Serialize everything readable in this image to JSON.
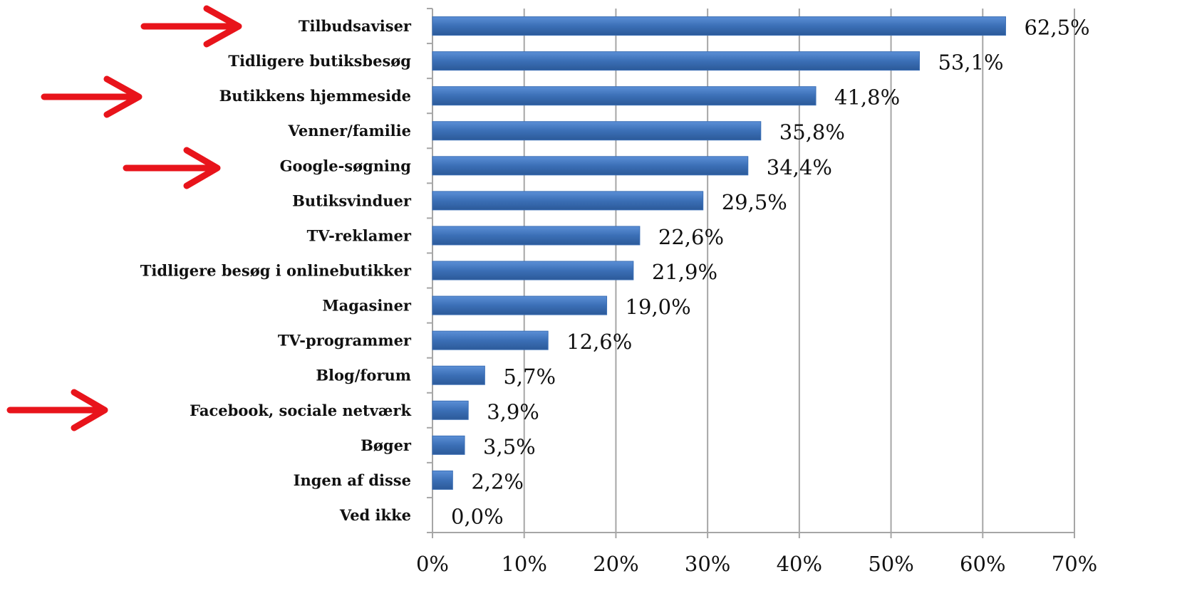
{
  "chart_data": {
    "type": "bar",
    "orientation": "horizontal",
    "categories": [
      "Tilbudsaviser",
      "Tidligere butiksbesøg",
      "Butikkens hjemmeside",
      "Venner/familie",
      "Google-søgning",
      "Butiksvinduer",
      "TV-reklamer",
      "Tidligere besøg i onlinebutikker",
      "Magasiner",
      "TV-programmer",
      "Blog/forum",
      "Facebook, sociale netværk",
      "Bøger",
      "Ingen af disse",
      "Ved ikke"
    ],
    "values": [
      62.5,
      53.1,
      41.8,
      35.8,
      34.4,
      29.5,
      22.6,
      21.9,
      19.0,
      12.6,
      5.7,
      3.9,
      3.5,
      2.2,
      0.0
    ],
    "value_labels": [
      "62,5%",
      "53,1%",
      "41,8%",
      "35,8%",
      "34,4%",
      "29,5%",
      "22,6%",
      "21,9%",
      "19,0%",
      "12,6%",
      "5,7%",
      "3,9%",
      "3,5%",
      "2,2%",
      "0,0%"
    ],
    "color": "#3b6fb6",
    "xlim": [
      0,
      70
    ],
    "xticks": [
      {
        "value": 0,
        "label": "0%"
      },
      {
        "value": 10,
        "label": "10%"
      },
      {
        "value": 20,
        "label": "20%"
      },
      {
        "value": 30,
        "label": "30%"
      },
      {
        "value": 40,
        "label": "40%"
      },
      {
        "value": 50,
        "label": "50%"
      },
      {
        "value": 60,
        "label": "60%"
      },
      {
        "value": 70,
        "label": "70%"
      }
    ],
    "grid": true
  }
}
